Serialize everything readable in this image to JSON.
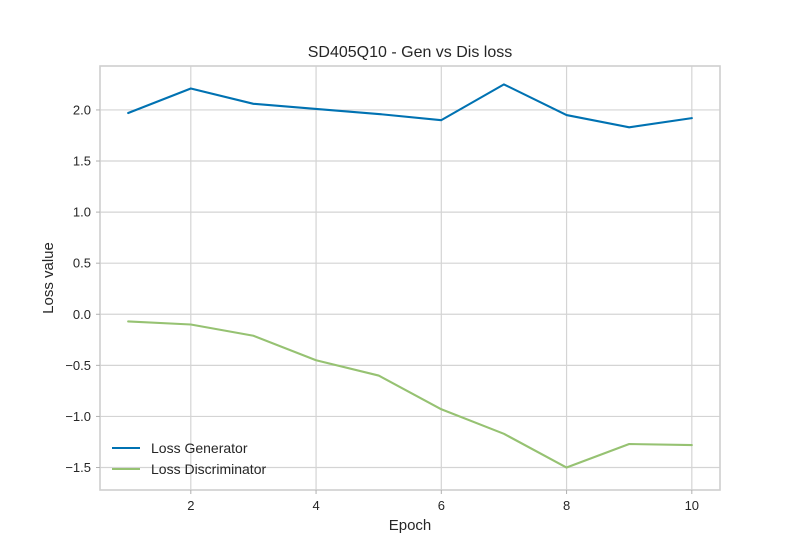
{
  "chart_data": {
    "type": "line",
    "title": "SD405Q10 - Gen vs Dis loss",
    "xlabel": "Epoch",
    "ylabel": "Loss value",
    "xlim": [
      0.55,
      10.45
    ],
    "ylim": [
      -1.72,
      2.43
    ],
    "xticks": [
      2,
      4,
      6,
      8,
      10
    ],
    "xtick_labels": [
      "2",
      "4",
      "6",
      "8",
      "10"
    ],
    "yticks": [
      -1.5,
      -1.0,
      -0.5,
      0.0,
      0.5,
      1.0,
      1.5,
      2.0
    ],
    "ytick_labels": [
      "−1.5",
      "−1.0",
      "−0.5",
      "0.0",
      "0.5",
      "1.0",
      "1.5",
      "2.0"
    ],
    "grid": true,
    "legend_position": "lower-left",
    "x": [
      1,
      2,
      3,
      4,
      5,
      6,
      7,
      8,
      9,
      10
    ],
    "series": [
      {
        "name": "Loss Generator",
        "color": "#0072b2",
        "values": [
          1.97,
          2.21,
          2.06,
          2.01,
          1.96,
          1.9,
          2.25,
          1.95,
          1.83,
          1.92
        ]
      },
      {
        "name": "Loss Discriminator",
        "color": "#96c272",
        "values": [
          -0.07,
          -0.1,
          -0.21,
          -0.45,
          -0.6,
          -0.93,
          -1.17,
          -1.5,
          -1.27,
          -1.28
        ]
      }
    ]
  }
}
